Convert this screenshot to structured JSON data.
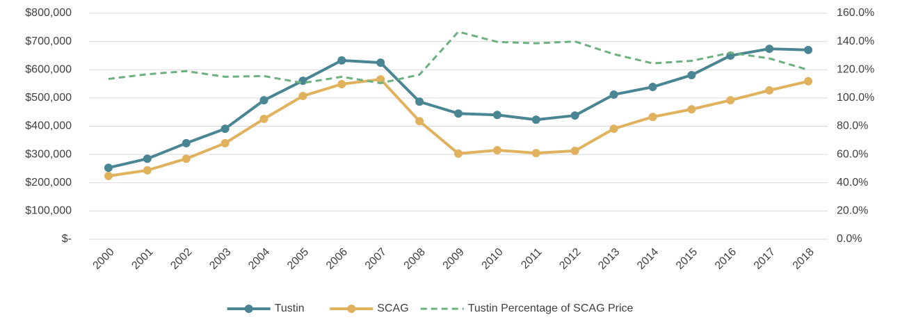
{
  "chart_data": {
    "type": "line",
    "categories": [
      "2000",
      "2001",
      "2002",
      "2003",
      "2004",
      "2005",
      "2006",
      "2007",
      "2008",
      "2009",
      "2010",
      "2011",
      "2012",
      "2013",
      "2014",
      "2015",
      "2016",
      "2017",
      "2018"
    ],
    "series": [
      {
        "name": "Tustin",
        "color": "#4a8594",
        "marker": true,
        "dashed": false,
        "values": [
          253000,
          285000,
          340000,
          391000,
          492000,
          561000,
          633000,
          625000,
          487000,
          445000,
          440000,
          423000,
          438000,
          512000,
          539000,
          581000,
          650000,
          674000,
          670000
        ]
      },
      {
        "name": "SCAG",
        "color": "#e0b25e",
        "marker": true,
        "dashed": false,
        "values": [
          224000,
          244000,
          285000,
          340000,
          426000,
          507000,
          549000,
          566000,
          418000,
          303000,
          315000,
          305000,
          313000,
          391000,
          433000,
          460000,
          492000,
          527000,
          559000
        ]
      },
      {
        "name": "Tustin Percentage of SCAG Price",
        "color": "#6bb07f",
        "marker": false,
        "dashed": true,
        "axis": "y2",
        "values": [
          113.5,
          116.8,
          119,
          115,
          115.5,
          110.6,
          115,
          110.5,
          116.5,
          146.9,
          139.7,
          138.7,
          140,
          131,
          124.5,
          126.3,
          132,
          128,
          119.9
        ]
      }
    ],
    "ylim": [
      0,
      800000
    ],
    "yticks": [
      {
        "value": 0,
        "label": "$-"
      },
      {
        "value": 100000,
        "label": "$100,000"
      },
      {
        "value": 200000,
        "label": "$200,000"
      },
      {
        "value": 300000,
        "label": "$300,000"
      },
      {
        "value": 400000,
        "label": "$400,000"
      },
      {
        "value": 500000,
        "label": "$500,000"
      },
      {
        "value": 600000,
        "label": "$600,000"
      },
      {
        "value": 700000,
        "label": "$700,000"
      },
      {
        "value": 800000,
        "label": "$800,000"
      }
    ],
    "y2lim": [
      0,
      160
    ],
    "y2ticks": [
      {
        "value": 0,
        "label": "0.0%"
      },
      {
        "value": 20,
        "label": "20.0%"
      },
      {
        "value": 40,
        "label": "40.0%"
      },
      {
        "value": 60,
        "label": "60.0%"
      },
      {
        "value": 80,
        "label": "80.0%"
      },
      {
        "value": 100,
        "label": "100.0%"
      },
      {
        "value": 120,
        "label": "120.0%"
      },
      {
        "value": 140,
        "label": "140.0%"
      },
      {
        "value": 160,
        "label": "160.0%"
      }
    ],
    "grid": true
  }
}
